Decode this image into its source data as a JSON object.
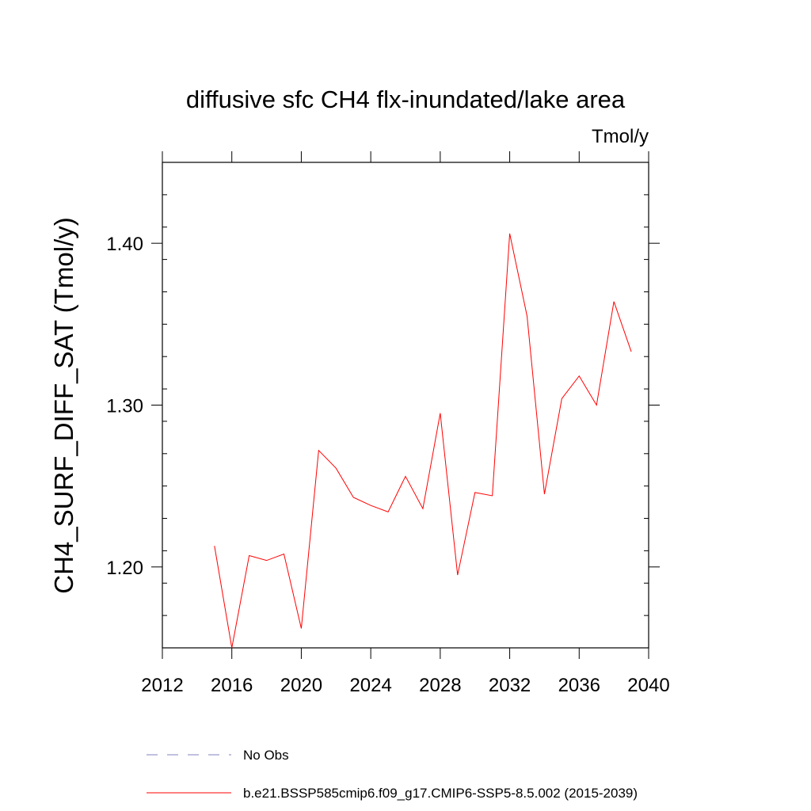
{
  "chart_data": {
    "type": "line",
    "title": "diffusive sfc CH4 flx-inundated/lake area",
    "units_label": "Tmol/y",
    "ylabel": "CH4_SURF_DIFF_SAT  (Tmol/y)",
    "xlabel": "",
    "xlim": [
      2012,
      2040
    ],
    "ylim": [
      1.15,
      1.45
    ],
    "x_ticks": [
      2012,
      2016,
      2020,
      2024,
      2028,
      2032,
      2036,
      2040
    ],
    "x_tick_labels": [
      "2012",
      "2016",
      "2020",
      "2024",
      "2028",
      "2032",
      "2036",
      "2040"
    ],
    "y_ticks": [
      1.2,
      1.3,
      1.4
    ],
    "y_tick_labels": [
      "1.20",
      "1.30",
      "1.40"
    ],
    "grid": false,
    "legend_position": "bottom",
    "legend": [
      {
        "label": "No Obs",
        "style": "dashed",
        "color": "#8080c0"
      },
      {
        "label": "b.e21.BSSP585cmip6.f09_g17.CMIP6-SSP5-8.5.002 (2015-2039)",
        "style": "solid",
        "color": "#ff0000"
      }
    ],
    "series": [
      {
        "name": "b.e21.BSSP585cmip6.f09_g17.CMIP6-SSP5-8.5.002 (2015-2039)",
        "color": "#ff0000",
        "x": [
          2015,
          2016,
          2017,
          2018,
          2019,
          2020,
          2021,
          2022,
          2023,
          2024,
          2025,
          2026,
          2027,
          2028,
          2029,
          2030,
          2031,
          2032,
          2033,
          2034,
          2035,
          2036,
          2037,
          2038,
          2039
        ],
        "values": [
          1.213,
          1.15,
          1.207,
          1.204,
          1.208,
          1.162,
          1.272,
          1.261,
          1.243,
          1.238,
          1.234,
          1.256,
          1.236,
          1.295,
          1.195,
          1.246,
          1.244,
          1.406,
          1.355,
          1.245,
          1.304,
          1.318,
          1.3,
          1.364,
          1.333
        ]
      }
    ]
  }
}
